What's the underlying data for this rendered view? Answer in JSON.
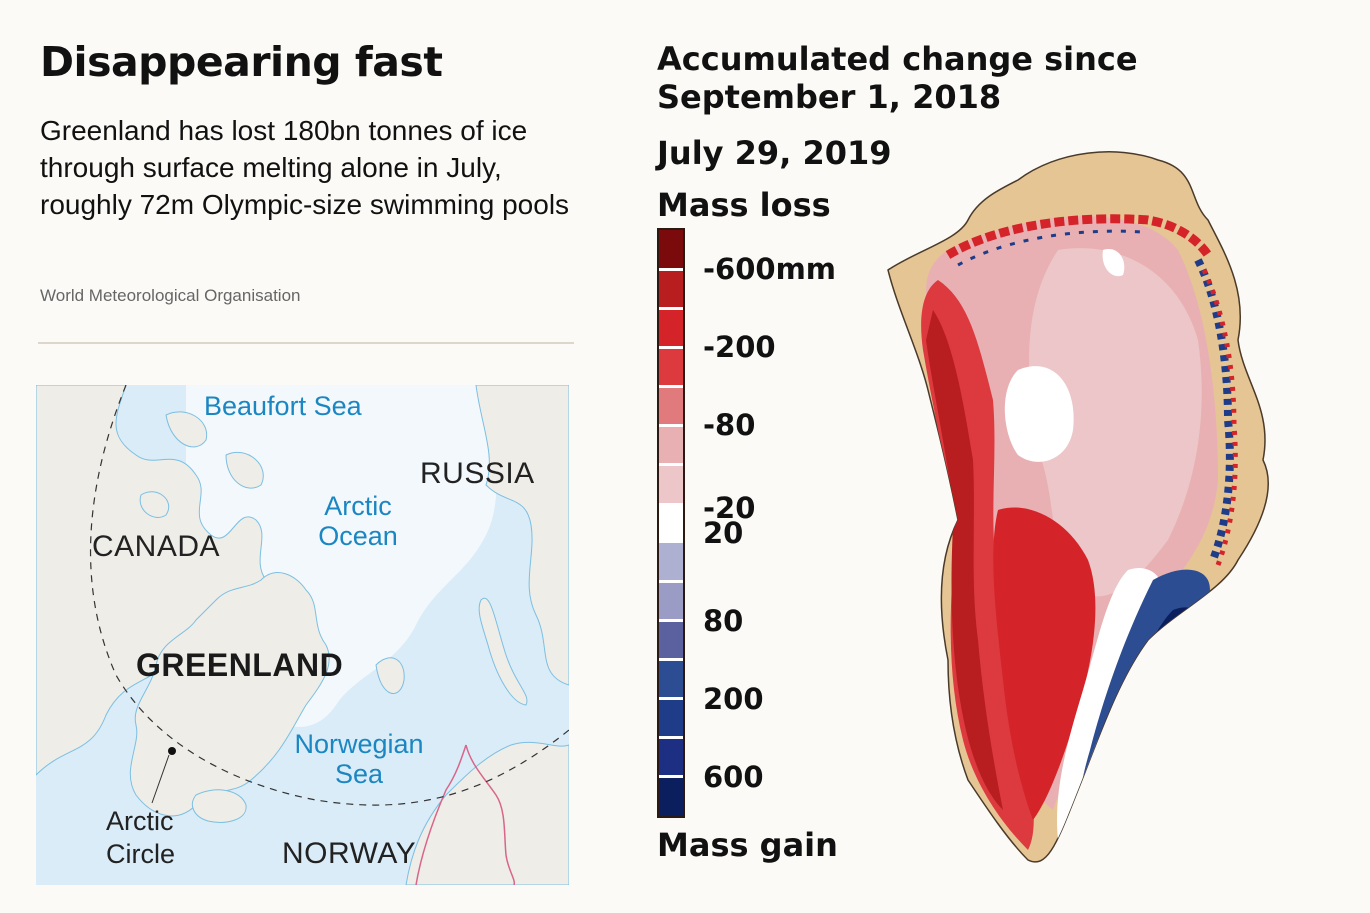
{
  "header": {
    "title": "Disappearing fast",
    "subtitle": "Greenland has lost 180bn tonnes of ice through surface melting alone in July, roughly 72m Olympic-size swimming pools",
    "source": "World Meteorological Organisation"
  },
  "inset_map": {
    "labels": {
      "beaufort": "Beaufort Sea",
      "arctic_ocean": "Arctic Ocean",
      "russia": "RUSSIA",
      "canada": "CANADA",
      "greenland": "GREENLAND",
      "norwegian": "Norwegian Sea",
      "arctic_circle": "Arctic Circle",
      "norway": "NORWAY"
    },
    "colors": {
      "sea": "#d9ecf7",
      "ice_sea": "#f3f8fc",
      "land": "#eeede8",
      "label_sea": "#1a86c2",
      "border": "#d9658a"
    }
  },
  "main_map": {
    "title_line1": "Accumulated change since",
    "title_line2": "September 1, 2018",
    "date": "July 29, 2019",
    "loss_label": "Mass loss",
    "gain_label": "Mass gain",
    "legend": {
      "unit": "mm",
      "bins": [
        {
          "color": "#7a0a0c"
        },
        {
          "color": "#b81d1f"
        },
        {
          "color": "#d4242a"
        },
        {
          "color": "#dc3a3f"
        },
        {
          "color": "#e07a7c"
        },
        {
          "color": "#e8b0b2"
        },
        {
          "color": "#ecc6c8"
        },
        {
          "color": "#ffffff"
        },
        {
          "color": "#aeb0d2"
        },
        {
          "color": "#9a9cc6"
        },
        {
          "color": "#5b619f"
        },
        {
          "color": "#2d4d92"
        },
        {
          "color": "#1f3c88"
        },
        {
          "color": "#1d2f82"
        },
        {
          "color": "#0b1f5e"
        }
      ],
      "ticks": [
        {
          "label": "-600mm",
          "value": -600
        },
        {
          "label": "-200",
          "value": -200
        },
        {
          "label": "-80",
          "value": -80
        },
        {
          "label": "-20",
          "value": -20
        },
        {
          "label": "20",
          "value": 20
        },
        {
          "label": "80",
          "value": 80
        },
        {
          "label": "200",
          "value": 200
        },
        {
          "label": "600",
          "value": 600
        }
      ]
    },
    "colors": {
      "land": "#e6c594",
      "coast": "#4a3a2a"
    }
  }
}
